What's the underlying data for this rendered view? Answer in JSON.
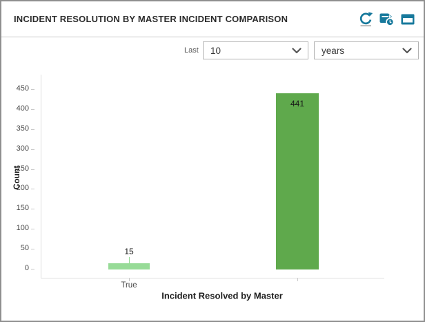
{
  "widget": {
    "title": "INCIDENT RESOLUTION BY MASTER INCIDENT COMPARISON",
    "accent_color": "#17799c",
    "icons": [
      "refresh-icon",
      "refresh-schedule-icon",
      "maximize-window-icon"
    ]
  },
  "filters": {
    "last_label": "Last",
    "count_value": "10",
    "unit_value": "years"
  },
  "chart_data": {
    "type": "bar",
    "title": "",
    "xlabel": "Incident Resolved by Master",
    "ylabel": "Count",
    "categories": [
      "True",
      ""
    ],
    "values": [
      15,
      441
    ],
    "data_labels": [
      "15",
      "441"
    ],
    "bar_colors": [
      "#97db97",
      "#5fa94c"
    ],
    "ylim": [
      0,
      450
    ],
    "ytick_step": 50,
    "grid": false,
    "legend": "none"
  }
}
